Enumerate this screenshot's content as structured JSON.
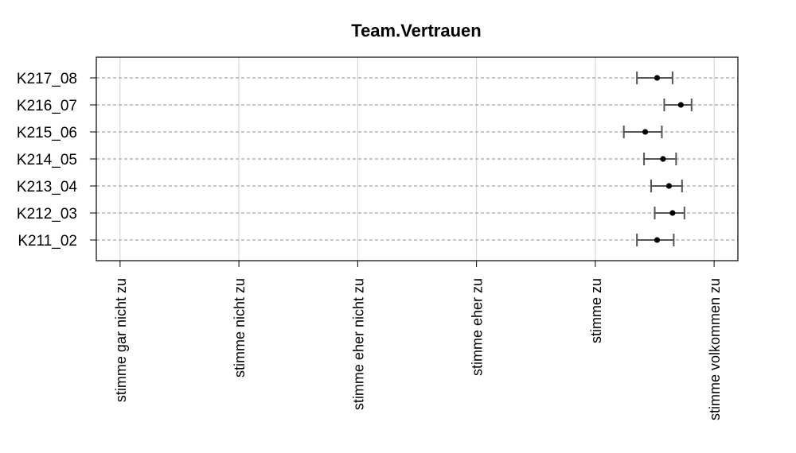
{
  "chart_data": {
    "type": "dot-errorbar",
    "title": "Team.Vertrauen",
    "orientation": "horizontal",
    "xlim": [
      0.8,
      6.2
    ],
    "x_ticks": [
      {
        "value": 1,
        "label": "stimme gar nicht zu"
      },
      {
        "value": 2,
        "label": "stimme nicht zu"
      },
      {
        "value": 3,
        "label": "stimme eher nicht zu"
      },
      {
        "value": 4,
        "label": "stimme eher zu"
      },
      {
        "value": 5,
        "label": "stimme zu"
      },
      {
        "value": 6,
        "label": "stimme volkommen zu"
      }
    ],
    "grid": "vertical-and-horizontal-dashed",
    "items": [
      {
        "label": "K217_08",
        "mean": 5.52,
        "lower": 5.35,
        "upper": 5.65
      },
      {
        "label": "K216_07",
        "mean": 5.72,
        "lower": 5.58,
        "upper": 5.81
      },
      {
        "label": "K215_06",
        "mean": 5.42,
        "lower": 5.24,
        "upper": 5.56
      },
      {
        "label": "K214_05",
        "mean": 5.57,
        "lower": 5.41,
        "upper": 5.68
      },
      {
        "label": "K213_04",
        "mean": 5.62,
        "lower": 5.47,
        "upper": 5.73
      },
      {
        "label": "K212_03",
        "mean": 5.65,
        "lower": 5.5,
        "upper": 5.75
      },
      {
        "label": "K211_02",
        "mean": 5.52,
        "lower": 5.35,
        "upper": 5.66
      }
    ]
  }
}
